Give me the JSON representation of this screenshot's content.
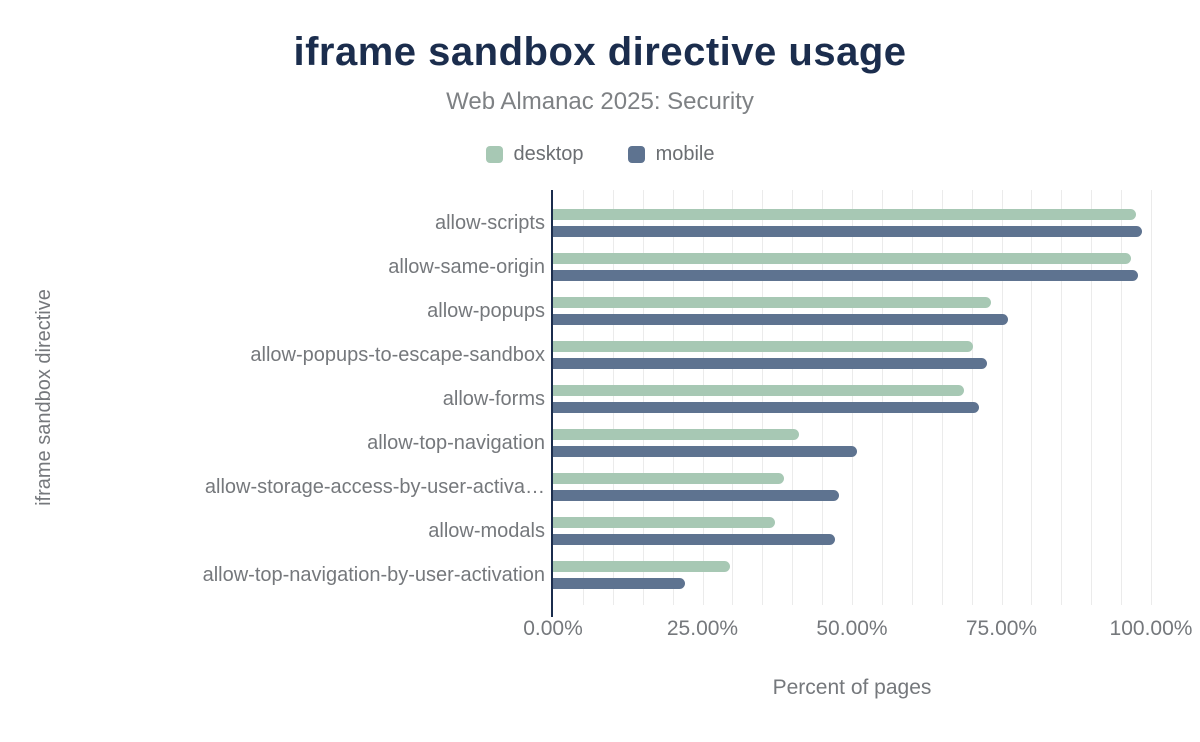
{
  "chart": {
    "title": "iframe sandbox directive usage",
    "subtitle": "Web Almanac 2025: Security",
    "xlabel": "Percent of pages",
    "ylabel": "iframe sandbox directive",
    "legend": [
      {
        "label": "desktop",
        "color": "#a7c8b4"
      },
      {
        "label": "mobile",
        "color": "#5e7390"
      }
    ]
  },
  "chart_data": {
    "type": "bar",
    "orientation": "horizontal",
    "title": "iframe sandbox directive usage",
    "subtitle": "Web Almanac 2025: Security",
    "xlabel": "Percent of pages",
    "ylabel": "iframe sandbox directive",
    "categories": [
      "allow-scripts",
      "allow-same-origin",
      "allow-popups",
      "allow-popups-to-escape-sandbox",
      "allow-forms",
      "allow-top-navigation",
      "allow-storage-access-by-user-activa…",
      "allow-modals",
      "allow-top-navigation-by-user-activation"
    ],
    "series": [
      {
        "name": "desktop",
        "color": "#a7c8b4",
        "values": [
          97.5,
          96.6,
          73.3,
          70.2,
          68.7,
          41.2,
          38.6,
          37.2,
          29.6
        ]
      },
      {
        "name": "mobile",
        "color": "#5e7390",
        "values": [
          98.5,
          97.8,
          76.1,
          72.5,
          71.2,
          50.8,
          47.8,
          47.2,
          22.1
        ]
      }
    ],
    "xlim": [
      0,
      100
    ],
    "xticks": [
      "0.00%",
      "25.00%",
      "50.00%",
      "75.00%",
      "100.00%"
    ],
    "xtick_percent_positions": [
      0,
      25,
      50,
      75,
      100
    ],
    "grid": {
      "minor_step_percent": 5,
      "color": "#ebebeb",
      "on": true
    },
    "legend_position": "top",
    "value_unit": "percent"
  },
  "colors": {
    "title": "#1b2d4d",
    "axis": "#1b2d4d",
    "text_gray": "#75787c",
    "desktop": "#a7c8b4",
    "mobile": "#5e7390",
    "gridline": "#ebebeb",
    "background": "#ffffff"
  }
}
